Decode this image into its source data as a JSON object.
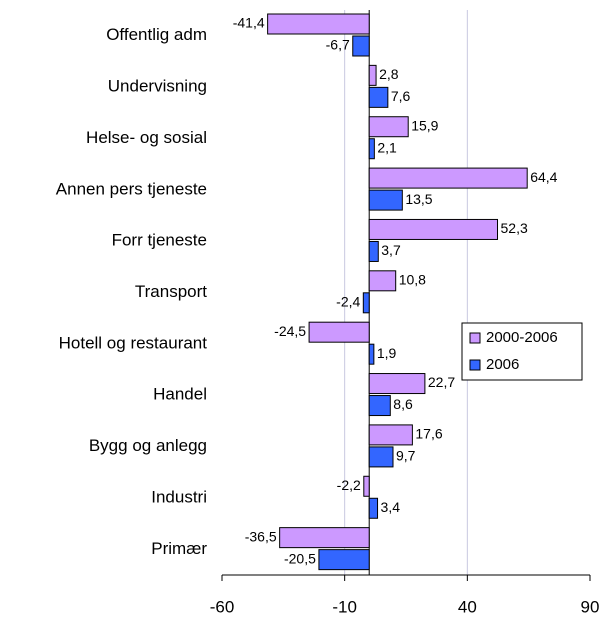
{
  "chart_data": {
    "type": "bar",
    "orientation": "horizontal",
    "categories": [
      "Offentlig adm",
      "Undervisning",
      "Helse- og sosial",
      "Annen pers tjeneste",
      "Forr tjeneste",
      "Transport",
      "Hotell og restaurant",
      "Handel",
      "Bygg og anlegg",
      "Industri",
      "Primær"
    ],
    "series": [
      {
        "name": "2000-2006",
        "color": "#cc99ff",
        "values": [
          -41.4,
          2.8,
          15.9,
          64.4,
          52.3,
          10.8,
          -24.5,
          22.7,
          17.6,
          -2.2,
          -36.5
        ],
        "value_labels": [
          "-41,4",
          "2,8",
          "15,9",
          "64,4",
          "52,3",
          "10,8",
          "-24,5",
          "22,7",
          "17,6",
          "-2,2",
          "-36,5"
        ]
      },
      {
        "name": "2006",
        "color": "#3366ff",
        "values": [
          -6.7,
          7.6,
          2.1,
          13.5,
          3.7,
          -2.4,
          1.9,
          8.6,
          9.7,
          3.4,
          -20.5
        ],
        "value_labels": [
          "-6,7",
          "7,6",
          "2,1",
          "13,5",
          "3,7",
          "-2,4",
          "1,9",
          "8,6",
          "9,7",
          "3,4",
          "-20,5"
        ]
      }
    ],
    "xlim": [
      -60,
      90
    ],
    "xticks": [
      -60,
      -10,
      40,
      90
    ],
    "grid": true,
    "legend": "right"
  }
}
